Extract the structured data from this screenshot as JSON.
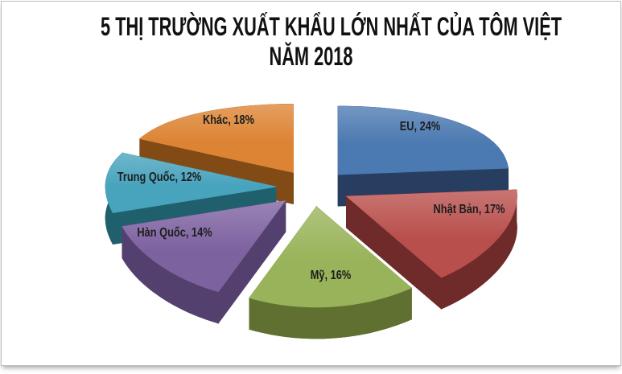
{
  "header": {
    "title": "5 THỊ TRƯỜNG XUẤT KHẨU LỚN NHẤT CỦA TÔM VIỆT NĂM 2018",
    "title_lines": [
      "5 THỊ TRƯỜNG XUẤT KHẨU LỚN NHẤT CỦA TÔM VIỆT",
      "NĂM 2018"
    ]
  },
  "chart_data": {
    "type": "pie",
    "style": "3d-exploded",
    "title": "5 THỊ TRƯỜNG XUẤT KHẨU LỚN NHẤT CỦA TÔM VIỆT NĂM 2018",
    "unit": "%",
    "legend": "none",
    "direction": "clockwise",
    "start_angle_deg": 0,
    "label_format": "name, value%",
    "slices": [
      {
        "id": "eu",
        "name": "EU",
        "value": 24,
        "display": "EU, 24%",
        "color": "#4B79B1",
        "side_color": "#273E61"
      },
      {
        "id": "nhat-ban",
        "name": "Nhật Bản",
        "value": 17,
        "display": "Nhật Bản, 17%",
        "color": "#B94F4C",
        "side_color": "#6F2B29"
      },
      {
        "id": "my",
        "name": "Mỹ",
        "value": 16,
        "display": "Mỹ, 16%",
        "color": "#98B359",
        "side_color": "#5F7031"
      },
      {
        "id": "han-quoc",
        "name": "Hàn Quốc",
        "value": 14,
        "display": "Hàn Quốc, 14%",
        "color": "#7D62A0",
        "side_color": "#53406E"
      },
      {
        "id": "trung-quoc",
        "name": "Trung Quốc",
        "value": 12,
        "display": "Trung Quốc, 12%",
        "color": "#48A3BD",
        "side_color": "#20606D"
      },
      {
        "id": "khac",
        "name": "Khác",
        "value": 18,
        "display": "Khác, 18%",
        "color": "#DD8434",
        "side_color": "#824B15"
      }
    ],
    "text_color": "#1d1d1d"
  }
}
